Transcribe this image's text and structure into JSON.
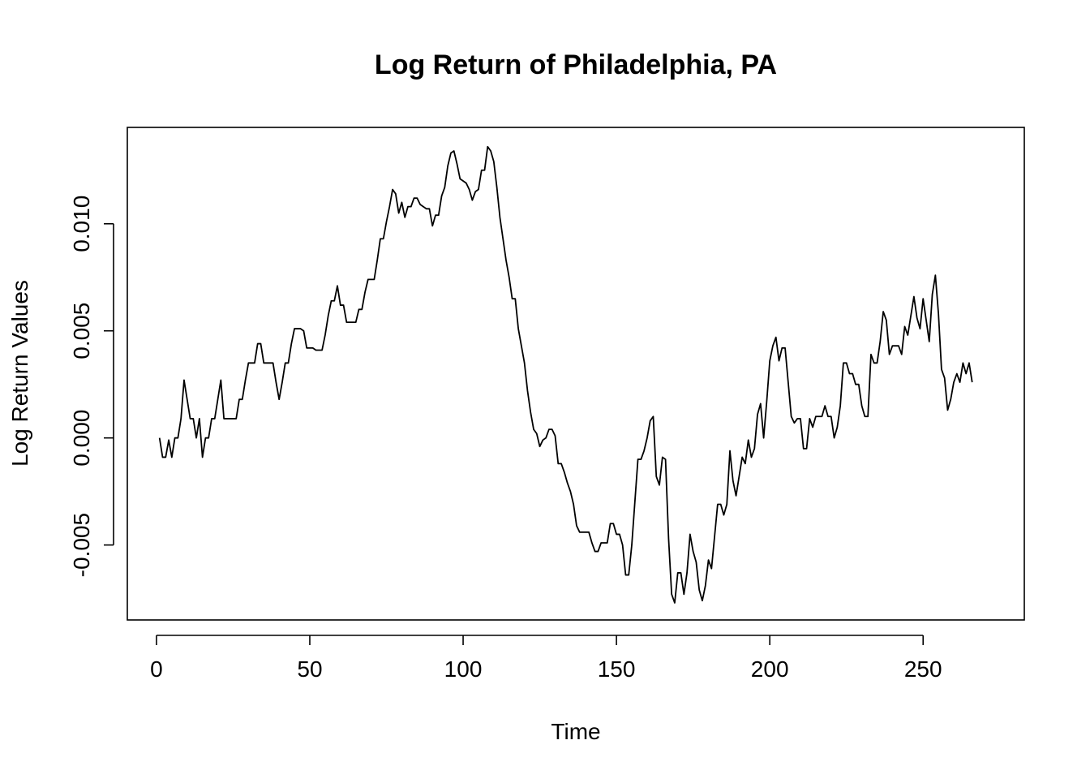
{
  "chart_data": {
    "type": "line",
    "title": "Log Return of Philadelphia, PA",
    "xlabel": "Time",
    "ylabel": "Log Return Values",
    "xlim": [
      -9.5,
      283
    ],
    "ylim": [
      -0.0085,
      0.0145
    ],
    "grid": false,
    "legend": "none",
    "colors": {
      "line": "#000000",
      "frame": "#000000"
    },
    "x_ticks": [
      0,
      50,
      100,
      150,
      200,
      250
    ],
    "x_tick_labels": [
      "0",
      "50",
      "100",
      "150",
      "200",
      "250"
    ],
    "y_ticks": [
      -0.005,
      0.0,
      0.005,
      0.01
    ],
    "y_tick_labels": [
      "-0.005",
      "0.000",
      "0.005",
      "0.010"
    ],
    "x_start": 1,
    "series": [
      {
        "values": [
          0.0,
          -0.0009,
          -0.0009,
          -0.0001,
          -0.0009,
          0.0,
          0.0,
          0.0009,
          0.0027,
          0.0018,
          0.0009,
          0.0009,
          0.0,
          0.0009,
          -0.0009,
          0.0,
          0.0,
          0.0009,
          0.0009,
          0.0018,
          0.0027,
          0.0009,
          0.0009,
          0.0009,
          0.0009,
          0.0009,
          0.0018,
          0.0018,
          0.0027,
          0.0035,
          0.0035,
          0.0035,
          0.0044,
          0.0044,
          0.0035,
          0.0035,
          0.0035,
          0.0035,
          0.0026,
          0.0018,
          0.0026,
          0.0035,
          0.0035,
          0.0044,
          0.0051,
          0.0051,
          0.0051,
          0.005,
          0.0042,
          0.0042,
          0.0042,
          0.0041,
          0.0041,
          0.0041,
          0.0048,
          0.0057,
          0.0064,
          0.0064,
          0.0071,
          0.0062,
          0.0062,
          0.0054,
          0.0054,
          0.0054,
          0.0054,
          0.006,
          0.006,
          0.0068,
          0.0074,
          0.0074,
          0.0074,
          0.0083,
          0.0093,
          0.0093,
          0.0101,
          0.0108,
          0.0116,
          0.0114,
          0.0105,
          0.011,
          0.0103,
          0.0108,
          0.0108,
          0.0112,
          0.0112,
          0.0109,
          0.0108,
          0.0107,
          0.0107,
          0.0099,
          0.0104,
          0.0104,
          0.0113,
          0.0117,
          0.0127,
          0.0133,
          0.0134,
          0.0128,
          0.0121,
          0.012,
          0.0119,
          0.0116,
          0.0111,
          0.0115,
          0.0116,
          0.0125,
          0.0125,
          0.0136,
          0.0134,
          0.0129,
          0.0117,
          0.0103,
          0.0093,
          0.0083,
          0.0075,
          0.0065,
          0.0065,
          0.0051,
          0.0043,
          0.0035,
          0.0022,
          0.0012,
          0.0004,
          0.0002,
          -0.0004,
          -0.0001,
          0.0,
          0.0004,
          0.0004,
          0.0001,
          -0.0012,
          -0.0012,
          -0.0016,
          -0.0021,
          -0.0025,
          -0.0031,
          -0.0041,
          -0.0044,
          -0.0044,
          -0.0044,
          -0.0044,
          -0.0049,
          -0.0053,
          -0.0053,
          -0.0049,
          -0.0049,
          -0.0049,
          -0.004,
          -0.004,
          -0.0045,
          -0.0045,
          -0.005,
          -0.0064,
          -0.0064,
          -0.005,
          -0.003,
          -0.001,
          -0.001,
          -0.0006,
          0.0,
          0.0008,
          0.001,
          -0.0018,
          -0.0022,
          -0.0009,
          -0.001,
          -0.0047,
          -0.0073,
          -0.0077,
          -0.0063,
          -0.0063,
          -0.0073,
          -0.0063,
          -0.0045,
          -0.0053,
          -0.0058,
          -0.0071,
          -0.0076,
          -0.0069,
          -0.0057,
          -0.0061,
          -0.0046,
          -0.0031,
          -0.0031,
          -0.0036,
          -0.0031,
          -0.0006,
          -0.002,
          -0.0027,
          -0.0018,
          -0.0009,
          -0.0012,
          -0.0001,
          -0.0009,
          -0.0005,
          0.0011,
          0.0016,
          0.0,
          0.0017,
          0.0036,
          0.0043,
          0.0047,
          0.0036,
          0.0042,
          0.0042,
          0.0026,
          0.001,
          0.0007,
          0.0009,
          0.0009,
          -0.0005,
          -0.0005,
          0.0009,
          0.0005,
          0.001,
          0.001,
          0.001,
          0.0015,
          0.001,
          0.001,
          0.0,
          0.0005,
          0.0015,
          0.0035,
          0.0035,
          0.003,
          0.003,
          0.0025,
          0.0025,
          0.0015,
          0.001,
          0.001,
          0.0039,
          0.0035,
          0.0035,
          0.0045,
          0.0059,
          0.0055,
          0.0039,
          0.0043,
          0.0043,
          0.0043,
          0.0039,
          0.0052,
          0.0048,
          0.0057,
          0.0066,
          0.0056,
          0.0051,
          0.0065,
          0.0055,
          0.0045,
          0.0067,
          0.0076,
          0.0058,
          0.0032,
          0.0028,
          0.0013,
          0.0018,
          0.0026,
          0.003,
          0.0026,
          0.0035,
          0.003,
          0.0035,
          0.0026
        ]
      }
    ]
  }
}
